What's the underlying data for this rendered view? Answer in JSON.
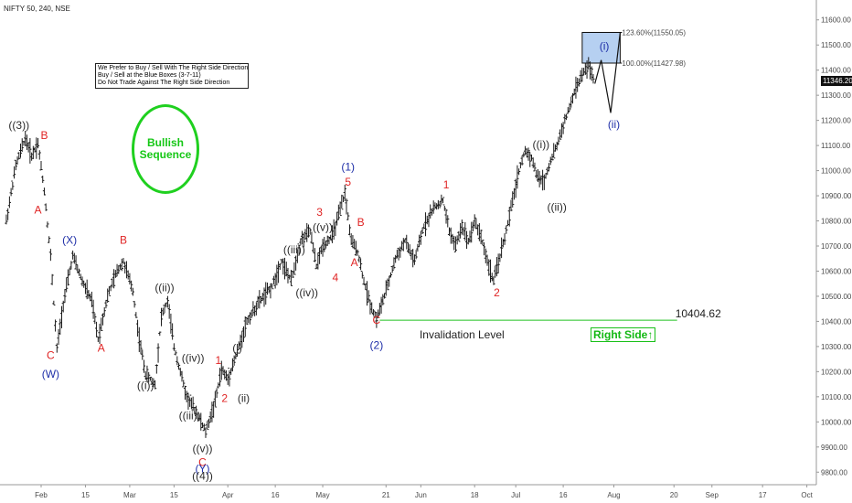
{
  "header": {
    "symbol": "NIFTY 50, 240, NSE"
  },
  "notes": {
    "line1": "We Prefer to Buy / Sell With The Right Side Direction",
    "line2": "Buy / Sell at the Blue Boxes (3-7-11)",
    "line3": "Do Not Trade Against The Right Side Direction"
  },
  "badge": {
    "line1": "Bullish",
    "line2": "Sequence",
    "color": "#1fd01f"
  },
  "right_side": "Right Side↑",
  "current_price": "11346.20",
  "colors": {
    "red": "#e02424",
    "blue": "#1f2fa8",
    "dark": "#2b2b2b",
    "green": "#18c018",
    "box": "#a9c8ef"
  },
  "chart_data": {
    "type": "ohlc",
    "ylim": [
      9750,
      11650
    ],
    "y_ticks": [
      "11600.00",
      "11500.00",
      "11400.00",
      "11300.00",
      "11200.00",
      "11100.00",
      "11000.00",
      "10900.00",
      "10800.00",
      "10700.00",
      "10600.00",
      "10500.00",
      "10400.00",
      "10300.00",
      "10200.00",
      "10100.00",
      "10000.00",
      "9900.00",
      "9800.00"
    ],
    "x_ticks": [
      {
        "label": "Feb",
        "day": 25
      },
      {
        "label": "15",
        "day": 39
      },
      {
        "label": "Mar",
        "day": 53
      },
      {
        "label": "15",
        "day": 67
      },
      {
        "label": "Apr",
        "day": 84
      },
      {
        "label": "16",
        "day": 99
      },
      {
        "label": "May",
        "day": 114
      },
      {
        "label": "21",
        "day": 134
      },
      {
        "label": "Jun",
        "day": 145
      },
      {
        "label": "18",
        "day": 162
      },
      {
        "label": "Jul",
        "day": 175
      },
      {
        "label": "16",
        "day": 190
      },
      {
        "label": "Aug",
        "day": 206
      },
      {
        "label": "20",
        "day": 225
      },
      {
        "label": "Sep",
        "day": 237
      },
      {
        "label": "17",
        "day": 253
      },
      {
        "label": "Oct",
        "day": 267
      }
    ],
    "price_path": [
      [
        14,
        10800
      ],
      [
        17,
        11020
      ],
      [
        20,
        11130
      ],
      [
        22,
        11060
      ],
      [
        24,
        11110
      ],
      [
        26,
        10920
      ],
      [
        28,
        10660
      ],
      [
        30,
        10290
      ],
      [
        32,
        10470
      ],
      [
        35,
        10660
      ],
      [
        38,
        10560
      ],
      [
        41,
        10480
      ],
      [
        43,
        10330
      ],
      [
        46,
        10500
      ],
      [
        49,
        10600
      ],
      [
        51,
        10640
      ],
      [
        54,
        10520
      ],
      [
        56,
        10330
      ],
      [
        58,
        10190
      ],
      [
        61,
        10150
      ],
      [
        63,
        10420
      ],
      [
        65,
        10480
      ],
      [
        67,
        10300
      ],
      [
        69,
        10200
      ],
      [
        71,
        10100
      ],
      [
        74,
        10040
      ],
      [
        77,
        9960
      ],
      [
        80,
        10080
      ],
      [
        82,
        10210
      ],
      [
        84,
        10170
      ],
      [
        87,
        10280
      ],
      [
        90,
        10400
      ],
      [
        94,
        10480
      ],
      [
        98,
        10540
      ],
      [
        101,
        10640
      ],
      [
        104,
        10560
      ],
      [
        107,
        10720
      ],
      [
        110,
        10760
      ],
      [
        112,
        10620
      ],
      [
        114,
        10700
      ],
      [
        117,
        10740
      ],
      [
        119,
        10820
      ],
      [
        121,
        10910
      ],
      [
        123,
        10720
      ],
      [
        125,
        10680
      ],
      [
        127,
        10560
      ],
      [
        129,
        10470
      ],
      [
        131,
        10410
      ],
      [
        134,
        10520
      ],
      [
        137,
        10650
      ],
      [
        140,
        10720
      ],
      [
        143,
        10640
      ],
      [
        146,
        10780
      ],
      [
        149,
        10850
      ],
      [
        152,
        10880
      ],
      [
        154,
        10760
      ],
      [
        156,
        10700
      ],
      [
        158,
        10780
      ],
      [
        160,
        10720
      ],
      [
        162,
        10800
      ],
      [
        164,
        10740
      ],
      [
        166,
        10640
      ],
      [
        168,
        10560
      ],
      [
        170,
        10660
      ],
      [
        172,
        10760
      ],
      [
        174,
        10880
      ],
      [
        176,
        11000
      ],
      [
        178,
        11080
      ],
      [
        180,
        11050
      ],
      [
        182,
        10970
      ],
      [
        184,
        10960
      ],
      [
        186,
        11040
      ],
      [
        188,
        11100
      ],
      [
        190,
        11180
      ],
      [
        192,
        11250
      ],
      [
        194,
        11330
      ],
      [
        196,
        11380
      ],
      [
        198,
        11420
      ],
      [
        200,
        11346
      ]
    ],
    "blue_box": {
      "x0": 196,
      "x1": 208,
      "y0": 11427.98,
      "y1": 11550.05
    },
    "fib_levels": [
      {
        "label": "123.60%(11550.05)",
        "value": 11550.05
      },
      {
        "label": "100.00%(11427.98)",
        "value": 11427.98
      }
    ],
    "projection": [
      [
        200,
        11346
      ],
      [
        202,
        11440
      ],
      [
        205,
        11230
      ],
      [
        208,
        11550
      ]
    ],
    "invalidation": {
      "value": 10404.62,
      "label": "10404.62",
      "text": "Invalidation Level",
      "x0": 132,
      "x1": 226
    },
    "wave_labels": [
      {
        "text": "((3))",
        "day": 18,
        "price": 11165,
        "color": "dark"
      },
      {
        "text": "B",
        "day": 26,
        "price": 11125,
        "color": "red"
      },
      {
        "text": "A",
        "day": 24,
        "price": 10830,
        "color": "red"
      },
      {
        "text": "(X)",
        "day": 34,
        "price": 10710,
        "color": "blue"
      },
      {
        "text": "C",
        "day": 28,
        "price": 10250,
        "color": "red"
      },
      {
        "text": "(W)",
        "day": 28,
        "price": 10175,
        "color": "blue"
      },
      {
        "text": "B",
        "day": 51,
        "price": 10710,
        "color": "red"
      },
      {
        "text": "A",
        "day": 44,
        "price": 10280,
        "color": "red"
      },
      {
        "text": "((ii))",
        "day": 64,
        "price": 10520,
        "color": "dark"
      },
      {
        "text": "((i))",
        "day": 58,
        "price": 10130,
        "color": "dark"
      },
      {
        "text": "((iv))",
        "day": 73,
        "price": 10240,
        "color": "dark"
      },
      {
        "text": "((iii))",
        "day": 72,
        "price": 10010,
        "color": "dark"
      },
      {
        "text": "((v))",
        "day": 76,
        "price": 9880,
        "color": "dark"
      },
      {
        "text": "C",
        "day": 76,
        "price": 9825,
        "color": "red"
      },
      {
        "text": "(Y)",
        "day": 76,
        "price": 9800,
        "color": "blue"
      },
      {
        "text": "((4))",
        "day": 76,
        "price": 9770,
        "color": "dark"
      },
      {
        "text": "1",
        "day": 81,
        "price": 10230,
        "color": "red"
      },
      {
        "text": "(i)",
        "day": 87,
        "price": 10280,
        "color": "dark"
      },
      {
        "text": "2",
        "day": 83,
        "price": 10080,
        "color": "red"
      },
      {
        "text": "(ii)",
        "day": 89,
        "price": 10080,
        "color": "dark"
      },
      {
        "text": "((iii))",
        "day": 105,
        "price": 10670,
        "color": "dark"
      },
      {
        "text": "((iv))",
        "day": 109,
        "price": 10500,
        "color": "dark"
      },
      {
        "text": "3",
        "day": 113,
        "price": 10820,
        "color": "red"
      },
      {
        "text": "((v))",
        "day": 114,
        "price": 10760,
        "color": "dark"
      },
      {
        "text": "4",
        "day": 118,
        "price": 10560,
        "color": "red"
      },
      {
        "text": "(1)",
        "day": 122,
        "price": 11000,
        "color": "blue"
      },
      {
        "text": "5",
        "day": 122,
        "price": 10940,
        "color": "red"
      },
      {
        "text": "B",
        "day": 126,
        "price": 10780,
        "color": "red"
      },
      {
        "text": "A",
        "day": 124,
        "price": 10620,
        "color": "red"
      },
      {
        "text": "C",
        "day": 131,
        "price": 10390,
        "color": "red"
      },
      {
        "text": "(2)",
        "day": 131,
        "price": 10290,
        "color": "blue"
      },
      {
        "text": "1",
        "day": 153,
        "price": 10930,
        "color": "red"
      },
      {
        "text": "2",
        "day": 169,
        "price": 10500,
        "color": "red"
      },
      {
        "text": "((i))",
        "day": 183,
        "price": 11090,
        "color": "dark"
      },
      {
        "text": "((ii))",
        "day": 188,
        "price": 10840,
        "color": "dark"
      },
      {
        "text": "(i)",
        "day": 203,
        "price": 11480,
        "color": "blue"
      },
      {
        "text": "(ii)",
        "day": 206,
        "price": 11170,
        "color": "blue"
      }
    ]
  }
}
